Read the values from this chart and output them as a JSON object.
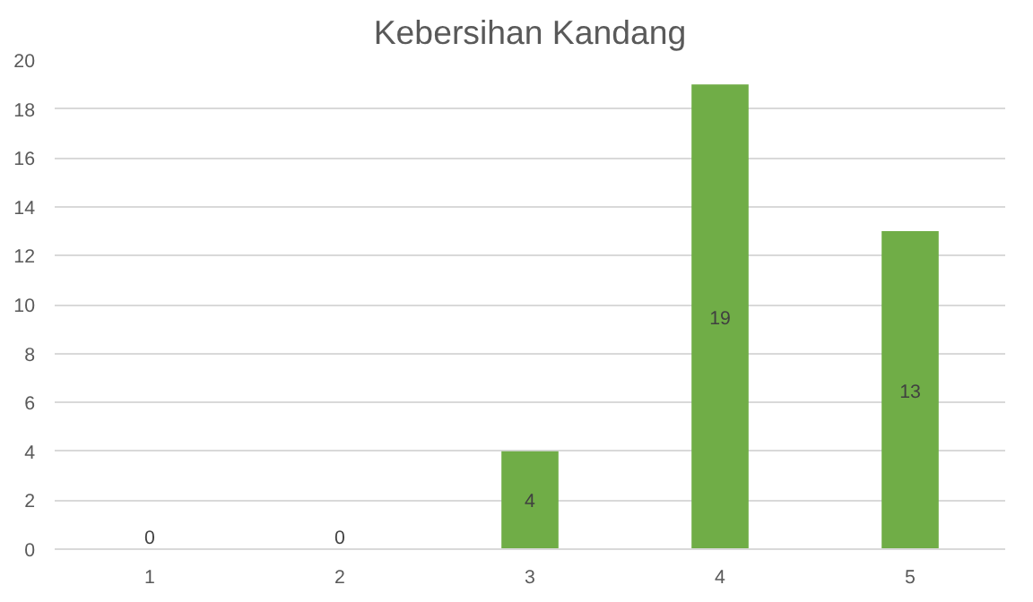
{
  "chart_data": {
    "type": "bar",
    "title": "Kebersihan Kandang",
    "categories": [
      "1",
      "2",
      "3",
      "4",
      "5"
    ],
    "values": [
      0,
      0,
      4,
      19,
      13
    ],
    "color": "#70ad47",
    "ylim": [
      0,
      20
    ],
    "yticks": [
      0,
      2,
      4,
      6,
      8,
      10,
      12,
      14,
      16,
      18,
      20
    ],
    "grid": "y",
    "data_labels": true
  }
}
